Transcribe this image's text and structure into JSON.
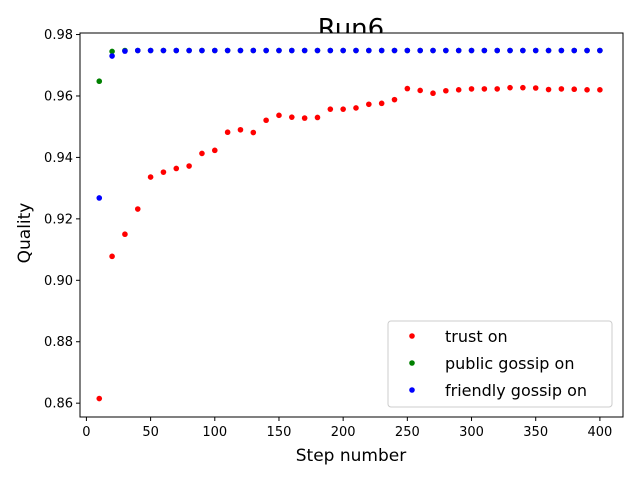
{
  "chart_data": {
    "type": "scatter",
    "title": "Run6",
    "xlabel": "Step number",
    "ylabel": "Quality",
    "xlim": [
      -5,
      418
    ],
    "ylim": [
      0.8555,
      0.9805
    ],
    "xticks": [
      0,
      50,
      100,
      150,
      200,
      250,
      300,
      350,
      400
    ],
    "xtick_labels": [
      "0",
      "50",
      "100",
      "150",
      "200",
      "250",
      "300",
      "350",
      "400"
    ],
    "yticks": [
      0.86,
      0.88,
      0.9,
      0.92,
      0.94,
      0.96,
      0.98
    ],
    "ytick_labels": [
      "0.86",
      "0.88",
      "0.90",
      "0.92",
      "0.94",
      "0.96",
      "0.98"
    ],
    "legend_position": "lower-right",
    "series": [
      {
        "name": "trust on",
        "color": "#ff0000",
        "x": [
          10,
          20,
          30,
          40,
          50,
          60,
          70,
          80,
          90,
          100,
          110,
          120,
          130,
          140,
          150,
          160,
          170,
          180,
          190,
          200,
          210,
          220,
          230,
          240,
          250,
          260,
          270,
          280,
          290,
          300,
          310,
          320,
          330,
          340,
          350,
          360,
          370,
          380,
          390,
          400
        ],
        "y": [
          0.8615,
          0.9078,
          0.915,
          0.9232,
          0.9336,
          0.9352,
          0.9364,
          0.9372,
          0.9413,
          0.9423,
          0.9482,
          0.949,
          0.9481,
          0.9521,
          0.9537,
          0.9531,
          0.9528,
          0.953,
          0.9557,
          0.9557,
          0.9561,
          0.9573,
          0.9576,
          0.9588,
          0.9624,
          0.9618,
          0.9609,
          0.9617,
          0.962,
          0.9623,
          0.9623,
          0.9623,
          0.9627,
          0.9627,
          0.9626,
          0.9621,
          0.9623,
          0.9622,
          0.962,
          0.962
        ]
      },
      {
        "name": "public gossip on",
        "color": "#008000",
        "x": [
          10,
          20,
          30,
          40,
          50,
          60,
          70,
          80,
          90,
          100,
          110,
          120,
          130,
          140,
          150,
          160,
          170,
          180,
          190,
          200,
          210,
          220,
          230,
          240,
          250,
          260,
          270,
          280,
          290,
          300,
          310,
          320,
          330,
          340,
          350,
          360,
          370,
          380,
          390,
          400
        ],
        "y": [
          0.9648,
          0.9745,
          0.9748,
          0.9748,
          0.9748,
          0.9748,
          0.9748,
          0.9748,
          0.9748,
          0.9748,
          0.9748,
          0.9748,
          0.9748,
          0.9748,
          0.9748,
          0.9748,
          0.9748,
          0.9748,
          0.9748,
          0.9748,
          0.9748,
          0.9748,
          0.9748,
          0.9748,
          0.9748,
          0.9748,
          0.9748,
          0.9748,
          0.9748,
          0.9748,
          0.9748,
          0.9748,
          0.9748,
          0.9748,
          0.9748,
          0.9748,
          0.9748,
          0.9748,
          0.9748,
          0.9748
        ]
      },
      {
        "name": "friendly gossip on",
        "color": "#0000ff",
        "x": [
          10,
          20,
          30,
          40,
          50,
          60,
          70,
          80,
          90,
          100,
          110,
          120,
          130,
          140,
          150,
          160,
          170,
          180,
          190,
          200,
          210,
          220,
          230,
          240,
          250,
          260,
          270,
          280,
          290,
          300,
          310,
          320,
          330,
          340,
          350,
          360,
          370,
          380,
          390,
          400
        ],
        "y": [
          0.9268,
          0.973,
          0.9746,
          0.9748,
          0.9748,
          0.9748,
          0.9748,
          0.9748,
          0.9748,
          0.9748,
          0.9748,
          0.9748,
          0.9748,
          0.9748,
          0.9748,
          0.9748,
          0.9748,
          0.9748,
          0.9748,
          0.9748,
          0.9748,
          0.9748,
          0.9748,
          0.9748,
          0.9748,
          0.9748,
          0.9748,
          0.9748,
          0.9748,
          0.9748,
          0.9748,
          0.9748,
          0.9748,
          0.9748,
          0.9748,
          0.9748,
          0.9748,
          0.9748,
          0.9748,
          0.9748
        ]
      }
    ]
  }
}
